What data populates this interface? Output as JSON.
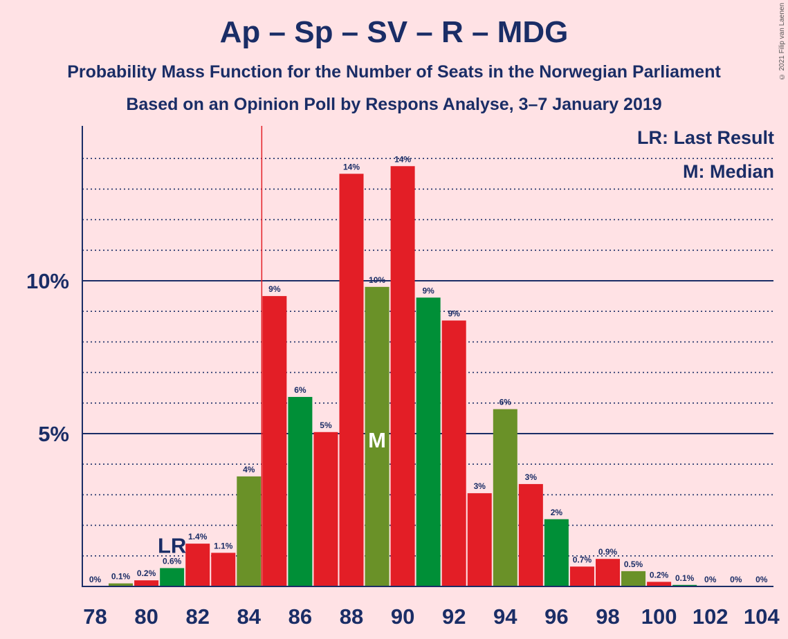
{
  "chart_data": {
    "type": "bar",
    "title": "Ap – Sp – SV – R – MDG",
    "subtitle1": "Probability Mass Function for the Number of Seats in the Norwegian Parliament",
    "subtitle2": "Based on an Opinion Poll by Respons Analyse, 3–7 January 2019",
    "legend": [
      "LR: Last Result",
      "M: Median"
    ],
    "copyright": "© 2021 Filip van Laenen",
    "x": [
      78,
      79,
      80,
      81,
      82,
      83,
      84,
      85,
      86,
      87,
      88,
      89,
      90,
      91,
      92,
      93,
      94,
      95,
      96,
      97,
      98,
      99,
      100,
      101,
      102,
      103,
      104
    ],
    "values": [
      0,
      0.1,
      0.2,
      0.6,
      1.4,
      1.1,
      3.6,
      9.5,
      6.2,
      5.05,
      13.5,
      9.8,
      13.75,
      9.45,
      8.7,
      3.05,
      5.8,
      3.35,
      2.2,
      0.65,
      0.9,
      0.5,
      0.15,
      0.05,
      0,
      0,
      0
    ],
    "labels": [
      "0%",
      "0.1%",
      "0.2%",
      "0.6%",
      "1.4%",
      "1.1%",
      "4%",
      "9%",
      "6%",
      "5%",
      "14%",
      "10%",
      "14%",
      "9%",
      "9%",
      "3%",
      "6%",
      "3%",
      "2%",
      "0.7%",
      "0.9%",
      "0.5%",
      "0.2%",
      "0.1%",
      "0%",
      "0%",
      "0%"
    ],
    "colors": [
      "#e31e26",
      "#6a9128",
      "#e31e26",
      "#008f37",
      "#e31e26",
      "#e31e26",
      "#6a9128",
      "#e31e26",
      "#008f37",
      "#e31e26",
      "#e31e26",
      "#6a9128",
      "#e31e26",
      "#008f37",
      "#e31e26",
      "#e31e26",
      "#6a9128",
      "#e31e26",
      "#008f37",
      "#e31e26",
      "#e31e26",
      "#6a9128",
      "#e31e26",
      "#008f37",
      "#e31e26",
      "#e31e26",
      "#e31e26"
    ],
    "x_tick_labels": [
      "78",
      "80",
      "82",
      "84",
      "86",
      "88",
      "90",
      "92",
      "94",
      "96",
      "98",
      "100",
      "102",
      "104"
    ],
    "y_tick_labels": [
      "5%",
      "10%"
    ],
    "ylim": [
      0,
      15
    ],
    "last_result": 85,
    "last_result_label": "LR",
    "last_result_label_seat": 81,
    "median": 89,
    "median_label": "M",
    "grid": true
  }
}
